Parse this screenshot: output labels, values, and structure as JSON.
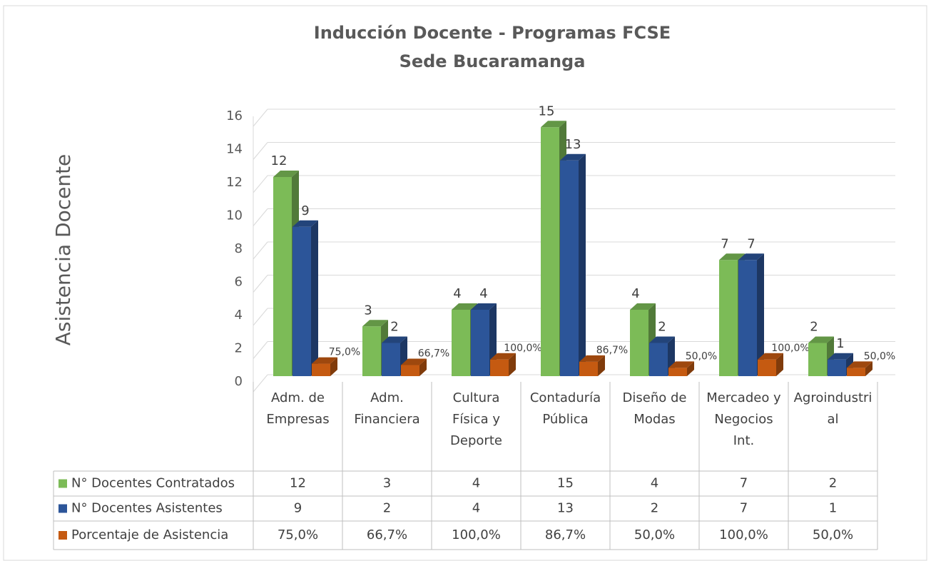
{
  "chart_data": {
    "type": "bar3d",
    "title": "Inducción Docente - Programas FCSE",
    "subtitle": "Sede Bucaramanga",
    "y_axis_label": "Asistencia Docente",
    "categories": [
      "Adm. de Empresas",
      "Adm. Financiera",
      "Cultura Física y Deporte",
      "Contaduría Pública",
      "Diseño de Modas",
      "Mercadeo y Negocios Int.",
      "Agroindustrial"
    ],
    "series": [
      {
        "name": "N° Docentes Contratados",
        "color": "#7cbb57",
        "values": [
          12,
          3,
          4,
          15,
          4,
          7,
          2
        ]
      },
      {
        "name": "N° Docentes Asistentes",
        "color": "#2c5599",
        "values": [
          9,
          2,
          4,
          13,
          2,
          7,
          1
        ]
      },
      {
        "name": "Porcentaje de Asistencia",
        "color": "#c55a11",
        "values": [
          0.75,
          0.667,
          1,
          0.867,
          0.5,
          1,
          0.5
        ],
        "value_labels": [
          "75,0%",
          "66,7%",
          "100,0%",
          "86,7%",
          "50,0%",
          "100,0%",
          "50,0%"
        ]
      }
    ],
    "ylim": [
      0,
      16
    ],
    "yticks": [
      0,
      2,
      4,
      6,
      8,
      10,
      12,
      14,
      16
    ],
    "grid": true,
    "data_table": true
  }
}
